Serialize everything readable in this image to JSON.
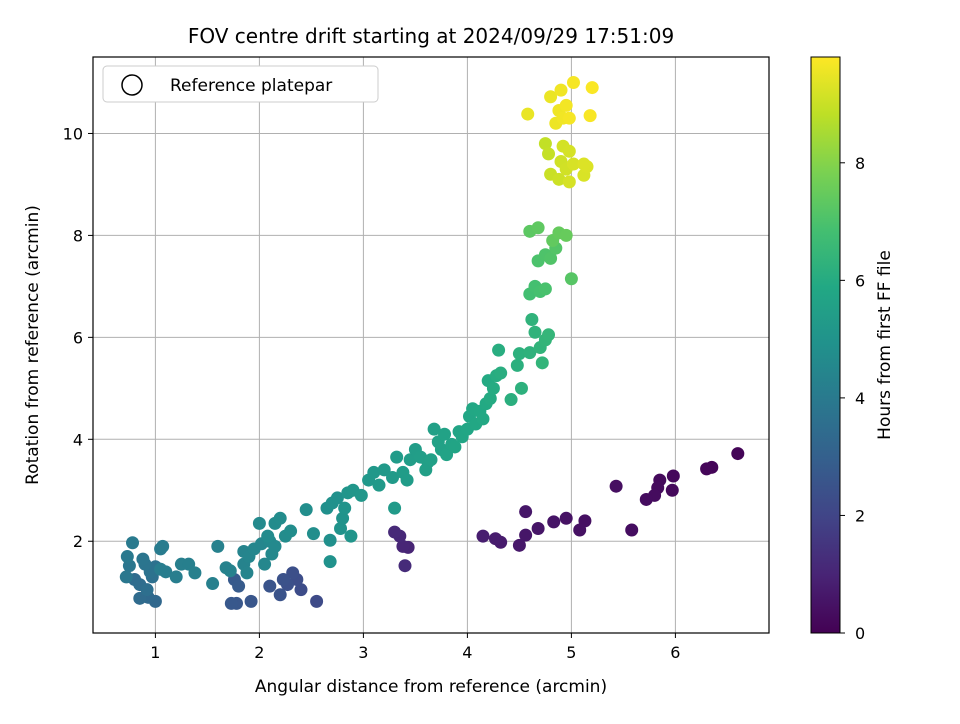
{
  "chart_data": {
    "type": "scatter",
    "title": "FOV centre drift starting at 2024/09/29 17:51:09",
    "xlabel": "Angular distance from reference (arcmin)",
    "ylabel": "Rotation from reference (arcmin)",
    "xlim": [
      0.4,
      6.9
    ],
    "ylim": [
      0.2,
      11.5
    ],
    "xticks": [
      1,
      2,
      3,
      4,
      5,
      6
    ],
    "yticks": [
      2,
      4,
      6,
      8,
      10
    ],
    "grid": true,
    "legend": {
      "position": "top-left",
      "entries": [
        "Reference platepar"
      ]
    },
    "colorbar": {
      "label": "Hours from first FF file",
      "colormap": "viridis",
      "range": [
        0,
        9.8
      ],
      "ticks": [
        0,
        2,
        4,
        6,
        8
      ]
    },
    "points": [
      {
        "x": 6.6,
        "y": 3.72,
        "c": 0.1
      },
      {
        "x": 6.35,
        "y": 3.45,
        "c": 0.12
      },
      {
        "x": 6.3,
        "y": 3.42,
        "c": 0.15
      },
      {
        "x": 5.98,
        "y": 3.28,
        "c": 0.2
      },
      {
        "x": 5.97,
        "y": 3.0,
        "c": 0.22
      },
      {
        "x": 5.85,
        "y": 3.2,
        "c": 0.25
      },
      {
        "x": 5.83,
        "y": 3.05,
        "c": 0.28
      },
      {
        "x": 5.8,
        "y": 2.9,
        "c": 0.3
      },
      {
        "x": 5.72,
        "y": 2.82,
        "c": 0.32
      },
      {
        "x": 5.58,
        "y": 2.22,
        "c": 0.35
      },
      {
        "x": 5.43,
        "y": 3.08,
        "c": 0.38
      },
      {
        "x": 5.13,
        "y": 2.4,
        "c": 0.42
      },
      {
        "x": 5.08,
        "y": 2.22,
        "c": 0.45
      },
      {
        "x": 4.95,
        "y": 2.45,
        "c": 0.48
      },
      {
        "x": 4.83,
        "y": 2.38,
        "c": 0.52
      },
      {
        "x": 4.68,
        "y": 2.25,
        "c": 0.55
      },
      {
        "x": 4.56,
        "y": 2.12,
        "c": 0.58
      },
      {
        "x": 4.56,
        "y": 2.58,
        "c": 0.6
      },
      {
        "x": 4.5,
        "y": 1.92,
        "c": 0.65
      },
      {
        "x": 4.32,
        "y": 1.98,
        "c": 0.7
      },
      {
        "x": 4.27,
        "y": 2.05,
        "c": 0.75
      },
      {
        "x": 4.15,
        "y": 2.1,
        "c": 0.8
      },
      {
        "x": 3.43,
        "y": 1.88,
        "c": 1.0
      },
      {
        "x": 3.38,
        "y": 1.9,
        "c": 1.05
      },
      {
        "x": 3.35,
        "y": 2.1,
        "c": 1.1
      },
      {
        "x": 3.3,
        "y": 2.18,
        "c": 1.15
      },
      {
        "x": 3.4,
        "y": 1.52,
        "c": 1.2
      },
      {
        "x": 2.55,
        "y": 0.82,
        "c": 2.2
      },
      {
        "x": 2.4,
        "y": 1.05,
        "c": 2.25
      },
      {
        "x": 2.36,
        "y": 1.25,
        "c": 2.3
      },
      {
        "x": 2.32,
        "y": 1.38,
        "c": 2.35
      },
      {
        "x": 2.27,
        "y": 1.15,
        "c": 2.4
      },
      {
        "x": 2.23,
        "y": 1.25,
        "c": 2.45
      },
      {
        "x": 2.2,
        "y": 0.95,
        "c": 2.5
      },
      {
        "x": 2.1,
        "y": 1.12,
        "c": 2.55
      },
      {
        "x": 1.92,
        "y": 0.82,
        "c": 2.6
      },
      {
        "x": 1.78,
        "y": 0.78,
        "c": 2.65
      },
      {
        "x": 1.73,
        "y": 0.78,
        "c": 2.7
      },
      {
        "x": 1.76,
        "y": 1.25,
        "c": 2.75
      },
      {
        "x": 1.8,
        "y": 1.12,
        "c": 2.8
      },
      {
        "x": 1.0,
        "y": 0.82,
        "c": 3.3
      },
      {
        "x": 0.93,
        "y": 0.9,
        "c": 3.35
      },
      {
        "x": 0.85,
        "y": 0.88,
        "c": 3.4
      },
      {
        "x": 0.8,
        "y": 1.25,
        "c": 3.45
      },
      {
        "x": 0.85,
        "y": 1.15,
        "c": 3.5
      },
      {
        "x": 0.92,
        "y": 1.05,
        "c": 3.55
      },
      {
        "x": 0.97,
        "y": 1.3,
        "c": 3.6
      },
      {
        "x": 1.0,
        "y": 1.5,
        "c": 3.65
      },
      {
        "x": 0.95,
        "y": 1.4,
        "c": 3.7
      },
      {
        "x": 0.9,
        "y": 1.55,
        "c": 3.75
      },
      {
        "x": 0.88,
        "y": 1.65,
        "c": 3.8
      },
      {
        "x": 0.75,
        "y": 1.52,
        "c": 3.85
      },
      {
        "x": 0.72,
        "y": 1.3,
        "c": 3.9
      },
      {
        "x": 0.73,
        "y": 1.7,
        "c": 3.95
      },
      {
        "x": 0.78,
        "y": 1.97,
        "c": 4.0
      },
      {
        "x": 1.05,
        "y": 1.85,
        "c": 4.05
      },
      {
        "x": 1.07,
        "y": 1.9,
        "c": 4.08
      },
      {
        "x": 1.05,
        "y": 1.45,
        "c": 4.1
      },
      {
        "x": 1.1,
        "y": 1.4,
        "c": 4.12
      },
      {
        "x": 1.2,
        "y": 1.3,
        "c": 4.15
      },
      {
        "x": 1.25,
        "y": 1.55,
        "c": 4.18
      },
      {
        "x": 1.32,
        "y": 1.55,
        "c": 4.2
      },
      {
        "x": 1.38,
        "y": 1.38,
        "c": 4.22
      },
      {
        "x": 1.55,
        "y": 1.17,
        "c": 4.25
      },
      {
        "x": 1.6,
        "y": 1.9,
        "c": 4.28
      },
      {
        "x": 1.68,
        "y": 1.48,
        "c": 4.3
      },
      {
        "x": 1.72,
        "y": 1.42,
        "c": 4.32
      },
      {
        "x": 1.85,
        "y": 1.55,
        "c": 4.35
      },
      {
        "x": 1.88,
        "y": 1.38,
        "c": 4.38
      },
      {
        "x": 1.85,
        "y": 1.8,
        "c": 4.4
      },
      {
        "x": 1.9,
        "y": 1.7,
        "c": 4.42
      },
      {
        "x": 1.95,
        "y": 1.85,
        "c": 4.45
      },
      {
        "x": 2.02,
        "y": 1.95,
        "c": 4.48
      },
      {
        "x": 2.05,
        "y": 1.55,
        "c": 4.5
      },
      {
        "x": 2.1,
        "y": 2.0,
        "c": 4.55
      },
      {
        "x": 2.12,
        "y": 1.75,
        "c": 4.58
      },
      {
        "x": 2.15,
        "y": 1.9,
        "c": 4.6
      },
      {
        "x": 2.0,
        "y": 2.35,
        "c": 4.62
      },
      {
        "x": 2.08,
        "y": 2.1,
        "c": 4.65
      },
      {
        "x": 2.15,
        "y": 2.35,
        "c": 4.68
      },
      {
        "x": 2.2,
        "y": 2.45,
        "c": 4.7
      },
      {
        "x": 2.25,
        "y": 2.1,
        "c": 4.72
      },
      {
        "x": 2.3,
        "y": 2.2,
        "c": 4.75
      },
      {
        "x": 2.45,
        "y": 2.62,
        "c": 4.78
      },
      {
        "x": 2.52,
        "y": 2.15,
        "c": 4.8
      },
      {
        "x": 2.65,
        "y": 2.65,
        "c": 4.85
      },
      {
        "x": 2.68,
        "y": 2.02,
        "c": 4.88
      },
      {
        "x": 2.7,
        "y": 2.75,
        "c": 4.9
      },
      {
        "x": 2.75,
        "y": 2.85,
        "c": 4.92
      },
      {
        "x": 2.68,
        "y": 1.6,
        "c": 4.95
      },
      {
        "x": 2.78,
        "y": 2.25,
        "c": 4.98
      },
      {
        "x": 2.8,
        "y": 2.45,
        "c": 5.0
      },
      {
        "x": 2.82,
        "y": 2.65,
        "c": 5.02
      },
      {
        "x": 2.85,
        "y": 2.95,
        "c": 5.05
      },
      {
        "x": 2.88,
        "y": 2.1,
        "c": 5.08
      },
      {
        "x": 2.9,
        "y": 3.0,
        "c": 5.1
      },
      {
        "x": 2.98,
        "y": 2.9,
        "c": 5.15
      },
      {
        "x": 3.05,
        "y": 3.2,
        "c": 5.18
      },
      {
        "x": 3.1,
        "y": 3.35,
        "c": 5.2
      },
      {
        "x": 3.15,
        "y": 3.1,
        "c": 5.22
      },
      {
        "x": 3.2,
        "y": 3.4,
        "c": 5.25
      },
      {
        "x": 3.28,
        "y": 3.25,
        "c": 5.28
      },
      {
        "x": 3.3,
        "y": 2.65,
        "c": 5.3
      },
      {
        "x": 3.32,
        "y": 3.65,
        "c": 5.32
      },
      {
        "x": 3.38,
        "y": 3.35,
        "c": 5.35
      },
      {
        "x": 3.42,
        "y": 3.2,
        "c": 5.38
      },
      {
        "x": 3.45,
        "y": 3.6,
        "c": 5.4
      },
      {
        "x": 3.5,
        "y": 3.8,
        "c": 5.42
      },
      {
        "x": 3.55,
        "y": 3.65,
        "c": 5.45
      },
      {
        "x": 3.6,
        "y": 3.4,
        "c": 5.48
      },
      {
        "x": 3.62,
        "y": 3.55,
        "c": 5.5
      },
      {
        "x": 3.65,
        "y": 3.6,
        "c": 5.52
      },
      {
        "x": 3.68,
        "y": 4.2,
        "c": 5.55
      },
      {
        "x": 3.72,
        "y": 3.95,
        "c": 5.58
      },
      {
        "x": 3.75,
        "y": 3.8,
        "c": 5.6
      },
      {
        "x": 3.78,
        "y": 4.1,
        "c": 5.62
      },
      {
        "x": 3.8,
        "y": 3.7,
        "c": 5.65
      },
      {
        "x": 3.85,
        "y": 3.9,
        "c": 5.68
      },
      {
        "x": 3.88,
        "y": 3.85,
        "c": 5.7
      },
      {
        "x": 3.92,
        "y": 4.15,
        "c": 5.72
      },
      {
        "x": 3.95,
        "y": 4.05,
        "c": 5.75
      },
      {
        "x": 4.0,
        "y": 4.2,
        "c": 5.78
      },
      {
        "x": 4.02,
        "y": 4.45,
        "c": 5.8
      },
      {
        "x": 4.05,
        "y": 4.6,
        "c": 5.82
      },
      {
        "x": 4.08,
        "y": 4.3,
        "c": 5.85
      },
      {
        "x": 4.12,
        "y": 4.55,
        "c": 5.88
      },
      {
        "x": 4.15,
        "y": 4.4,
        "c": 5.9
      },
      {
        "x": 4.18,
        "y": 4.7,
        "c": 5.92
      },
      {
        "x": 4.2,
        "y": 5.15,
        "c": 5.95
      },
      {
        "x": 4.22,
        "y": 4.8,
        "c": 5.98
      },
      {
        "x": 4.25,
        "y": 5.0,
        "c": 6.0
      },
      {
        "x": 4.28,
        "y": 5.25,
        "c": 6.05
      },
      {
        "x": 4.3,
        "y": 5.75,
        "c": 6.08
      },
      {
        "x": 4.32,
        "y": 5.3,
        "c": 6.1
      },
      {
        "x": 4.42,
        "y": 4.78,
        "c": 6.15
      },
      {
        "x": 4.48,
        "y": 5.45,
        "c": 6.18
      },
      {
        "x": 4.5,
        "y": 5.68,
        "c": 6.2
      },
      {
        "x": 4.52,
        "y": 5.0,
        "c": 6.22
      },
      {
        "x": 4.6,
        "y": 5.7,
        "c": 6.25
      },
      {
        "x": 4.62,
        "y": 6.35,
        "c": 6.3
      },
      {
        "x": 4.65,
        "y": 6.1,
        "c": 6.32
      },
      {
        "x": 4.7,
        "y": 5.8,
        "c": 6.35
      },
      {
        "x": 4.72,
        "y": 5.5,
        "c": 6.38
      },
      {
        "x": 4.75,
        "y": 5.95,
        "c": 6.4
      },
      {
        "x": 4.78,
        "y": 6.05,
        "c": 6.42
      },
      {
        "x": 4.6,
        "y": 6.85,
        "c": 6.8
      },
      {
        "x": 4.65,
        "y": 7.0,
        "c": 6.85
      },
      {
        "x": 4.7,
        "y": 6.9,
        "c": 6.9
      },
      {
        "x": 4.75,
        "y": 6.95,
        "c": 6.95
      },
      {
        "x": 4.68,
        "y": 7.5,
        "c": 7.0
      },
      {
        "x": 4.75,
        "y": 7.62,
        "c": 7.05
      },
      {
        "x": 4.8,
        "y": 7.55,
        "c": 7.1
      },
      {
        "x": 4.85,
        "y": 7.75,
        "c": 7.15
      },
      {
        "x": 5.0,
        "y": 7.15,
        "c": 7.2
      },
      {
        "x": 4.6,
        "y": 8.08,
        "c": 7.3
      },
      {
        "x": 4.68,
        "y": 8.15,
        "c": 7.35
      },
      {
        "x": 4.82,
        "y": 7.9,
        "c": 7.4
      },
      {
        "x": 4.88,
        "y": 8.05,
        "c": 7.45
      },
      {
        "x": 4.95,
        "y": 8.0,
        "c": 7.5
      },
      {
        "x": 4.75,
        "y": 9.8,
        "c": 8.9
      },
      {
        "x": 4.78,
        "y": 9.6,
        "c": 8.95
      },
      {
        "x": 4.8,
        "y": 9.2,
        "c": 9.0
      },
      {
        "x": 4.88,
        "y": 9.1,
        "c": 9.05
      },
      {
        "x": 4.9,
        "y": 9.45,
        "c": 9.1
      },
      {
        "x": 4.95,
        "y": 9.3,
        "c": 9.12
      },
      {
        "x": 4.92,
        "y": 9.75,
        "c": 9.15
      },
      {
        "x": 4.98,
        "y": 9.65,
        "c": 9.18
      },
      {
        "x": 4.98,
        "y": 9.05,
        "c": 9.2
      },
      {
        "x": 5.02,
        "y": 9.4,
        "c": 9.22
      },
      {
        "x": 5.12,
        "y": 9.18,
        "c": 9.25
      },
      {
        "x": 5.15,
        "y": 9.35,
        "c": 9.28
      },
      {
        "x": 5.12,
        "y": 9.4,
        "c": 9.3
      },
      {
        "x": 4.58,
        "y": 10.38,
        "c": 9.5
      },
      {
        "x": 4.8,
        "y": 10.72,
        "c": 9.52
      },
      {
        "x": 4.85,
        "y": 10.2,
        "c": 9.55
      },
      {
        "x": 4.88,
        "y": 10.45,
        "c": 9.58
      },
      {
        "x": 4.9,
        "y": 10.85,
        "c": 9.6
      },
      {
        "x": 4.92,
        "y": 10.3,
        "c": 9.62
      },
      {
        "x": 4.95,
        "y": 10.55,
        "c": 9.65
      },
      {
        "x": 4.98,
        "y": 10.3,
        "c": 9.68
      },
      {
        "x": 5.02,
        "y": 11.0,
        "c": 9.7
      },
      {
        "x": 5.18,
        "y": 10.35,
        "c": 9.72
      },
      {
        "x": 5.2,
        "y": 10.9,
        "c": 9.75
      }
    ]
  }
}
